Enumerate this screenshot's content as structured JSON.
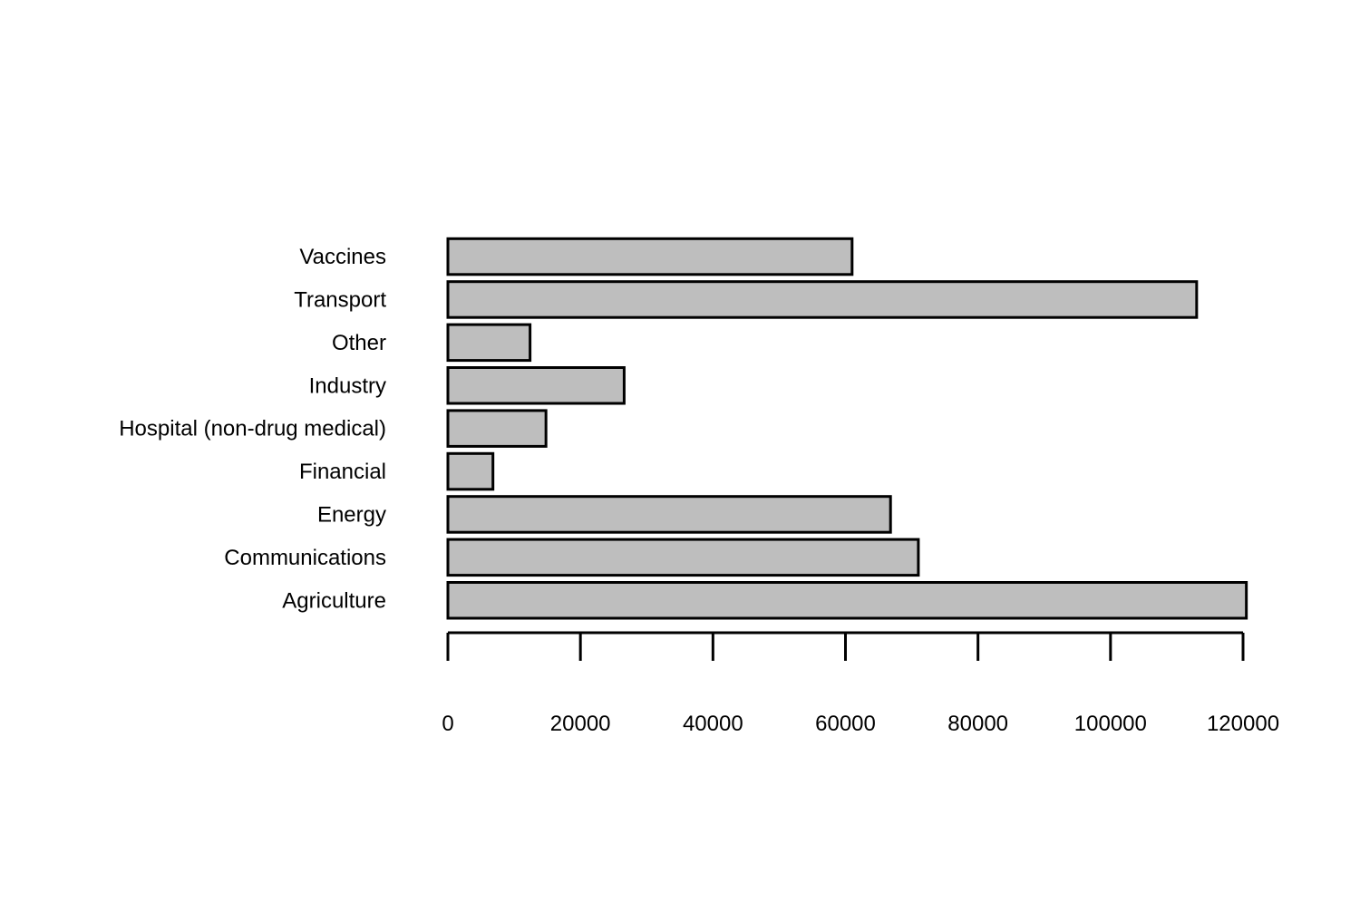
{
  "chart_data": {
    "type": "bar",
    "orientation": "horizontal",
    "title": "",
    "xlabel": "",
    "ylabel": "",
    "categories": [
      "Agriculture",
      "Communications",
      "Energy",
      "Financial",
      "Hospital (non-drug medical)",
      "Industry",
      "Other",
      "Transport",
      "Vaccines"
    ],
    "values": [
      120500,
      71000,
      66800,
      6800,
      14800,
      26600,
      12400,
      113000,
      61000
    ],
    "xlim": [
      0,
      120000
    ],
    "xticks": [
      0,
      20000,
      40000,
      60000,
      80000,
      100000,
      120000
    ],
    "xtick_labels": [
      "0",
      "20000",
      "40000",
      "60000",
      "80000",
      "100000",
      "120000"
    ],
    "bar_color": "#bebebe",
    "grid": false,
    "legend": "none"
  }
}
